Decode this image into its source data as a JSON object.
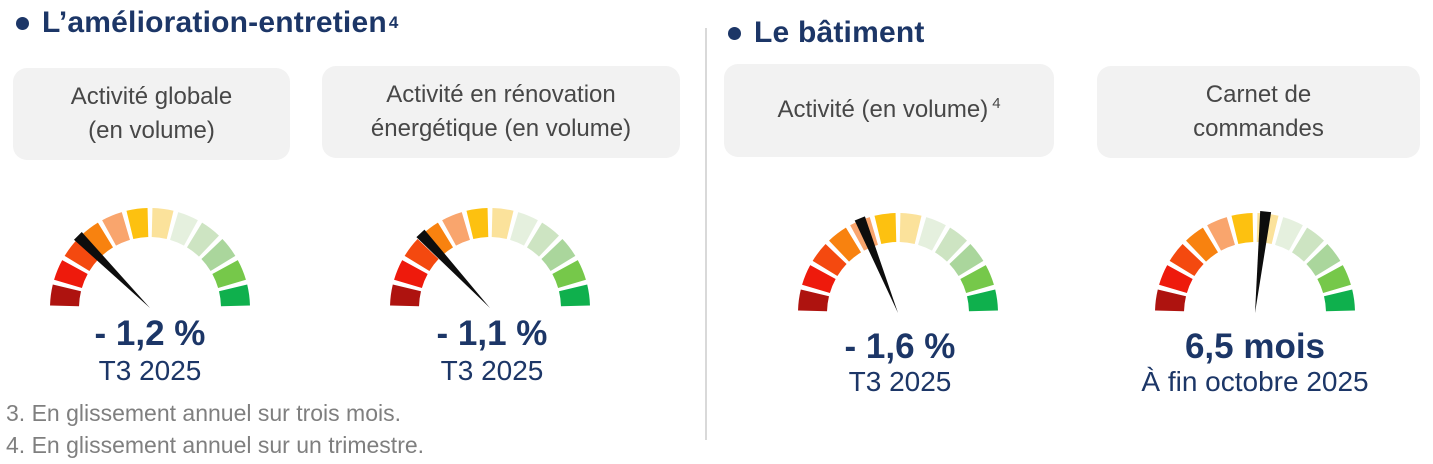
{
  "page": {
    "background": "#ffffff",
    "accent_navy": "#1c3667",
    "card_bg": "#f2f2f2",
    "card_text": "#474747",
    "footnote_gray": "#7f7f7f",
    "divider_gray": "#d9d9d9"
  },
  "sections": [
    {
      "title": "L’amélioration-entretien",
      "title_sup": "4"
    },
    {
      "title": "Le bâtiment",
      "title_sup": ""
    }
  ],
  "cards": [
    {
      "lines": [
        "Activité globale",
        "(en volume)"
      ]
    },
    {
      "lines": [
        "Activité en rénovation",
        "énergétique (en volume)"
      ]
    },
    {
      "lines": [
        "Activité (en volume)"
      ],
      "sup": "4"
    },
    {
      "lines": [
        "Carnet de",
        "commandes"
      ]
    }
  ],
  "footnotes": [
    "3. En glissement annuel sur trois mois.",
    "4. En glissement annuel sur un trimestre."
  ],
  "gauge_style": {
    "start_deg": 180,
    "end_deg": 0,
    "segment_gap_deg": 1.4,
    "needle_color": "#0d0d0d",
    "segment_colors": [
      "#ae130f",
      "#ee1a0c",
      "#f4490f",
      "#f8820f",
      "#f9a56d",
      "#fdc110",
      "#fbe29b",
      "#e5f0de",
      "#cde4c2",
      "#aad69c",
      "#76c84a",
      "#0fb04d"
    ]
  },
  "chart_data": [
    {
      "type": "gauge",
      "section": "L’amélioration-entretien",
      "label": "Activité globale (en volume)",
      "value": "- 1,2 %",
      "period": "T3 2025",
      "needle_deg": 135
    },
    {
      "type": "gauge",
      "section": "L’amélioration-entretien",
      "label": "Activité en rénovation énergétique (en volume)",
      "value": "- 1,1 %",
      "period": "T3 2025",
      "needle_deg": 133
    },
    {
      "type": "gauge",
      "section": "Le bâtiment",
      "label": "Activité (en volume) 4",
      "value": "- 1,6 %",
      "period": "T3 2025",
      "needle_deg": 112
    },
    {
      "type": "gauge",
      "section": "Le bâtiment",
      "label": "Carnet de commandes",
      "value": "6,5 mois",
      "period": "À fin octobre 2025",
      "needle_deg": 84
    }
  ]
}
